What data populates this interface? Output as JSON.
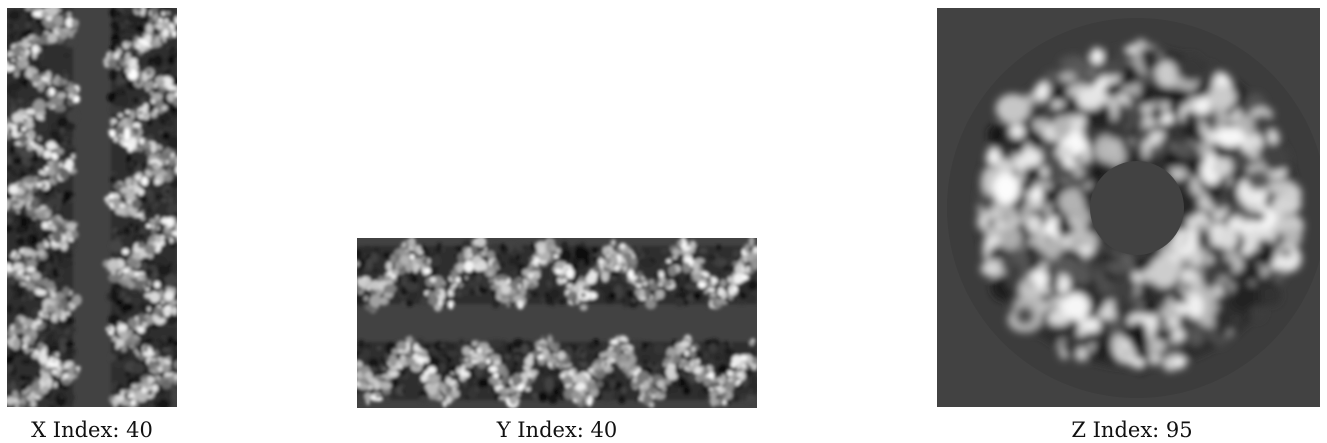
{
  "panels": [
    {
      "id": "x",
      "caption": "X Index: 40",
      "orientation": "vertical-tube-slice"
    },
    {
      "id": "y",
      "caption": "Y Index: 40",
      "orientation": "horizontal-tube-slice"
    },
    {
      "id": "z",
      "caption": "Z Index: 95",
      "orientation": "cross-section-ring"
    }
  ],
  "colors": {
    "background": "#424242",
    "density_light": "#f0f0f0",
    "density_dark": "#101010"
  }
}
